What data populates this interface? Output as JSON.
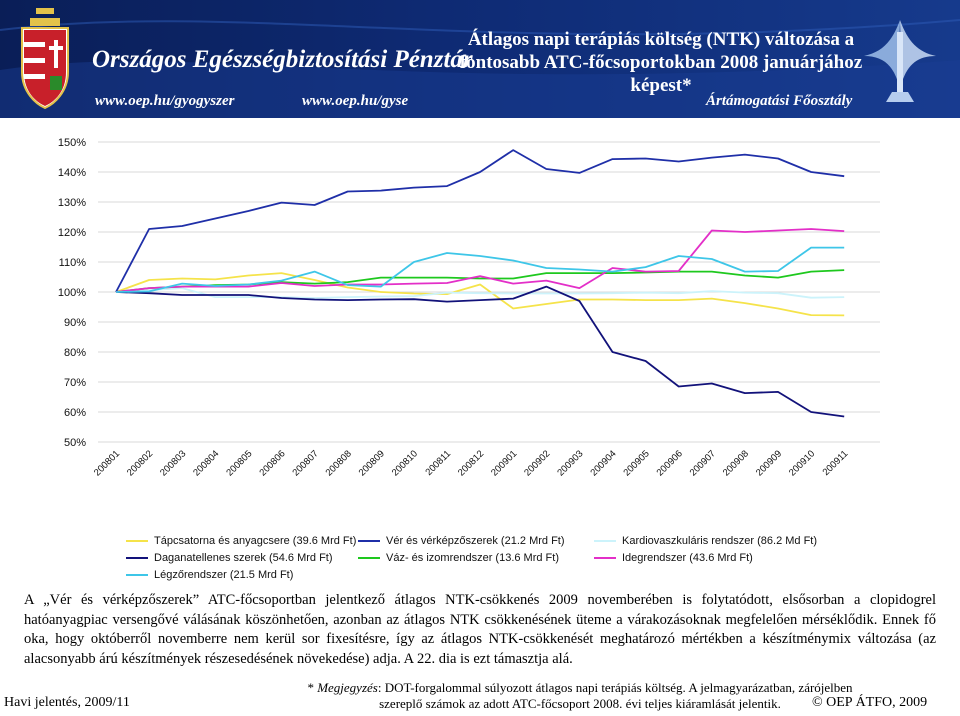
{
  "header": {
    "org_name": "Országos Egészségbiztosítási Pénztár",
    "url_left": "www.oep.hu/gyogyszer",
    "url_right": "www.oep.hu/gyse",
    "title": "Átlagos napi terápiás költség (NTK) változása a fontosabb ATC-főcsoportokban 2008 januárjához képest*",
    "department": "Ártámogatási Főosztály"
  },
  "chart_data": {
    "type": "line",
    "ylim": [
      50,
      150
    ],
    "yticks": [
      "50%",
      "60%",
      "70%",
      "80%",
      "90%",
      "100%",
      "110%",
      "120%",
      "130%",
      "140%",
      "150%"
    ],
    "y_tick_values": [
      50,
      60,
      70,
      80,
      90,
      100,
      110,
      120,
      130,
      140,
      150
    ],
    "grid": "horizontal",
    "legend_position": "bottom",
    "categories": [
      "200801",
      "200802",
      "200803",
      "200804",
      "200805",
      "200806",
      "200807",
      "200808",
      "200809",
      "200810",
      "200811",
      "200812",
      "200901",
      "200902",
      "200903",
      "200904",
      "200905",
      "200906",
      "200907",
      "200908",
      "200909",
      "200910",
      "200911"
    ],
    "series": [
      {
        "name": "Tápcsatorna és anyagcsere (39.6 Mrd Ft)",
        "color": "#f5e34a",
        "values": [
          100,
          104,
          104.5,
          104.2,
          105.5,
          106.3,
          104,
          101.5,
          100,
          99.5,
          99.3,
          102.5,
          94.5,
          96,
          97.5,
          97.5,
          97.3,
          97.3,
          97.8,
          96.3,
          94.5,
          92.3,
          92.2
        ]
      },
      {
        "name": "Vér és vérképzőszerek (21.2 Mrd Ft)",
        "color": "#1f2fa8",
        "values": [
          100,
          121,
          122,
          124.5,
          127,
          129.8,
          129,
          133.5,
          133.8,
          134.8,
          135.3,
          140,
          147.3,
          141,
          139.7,
          144.3,
          144.5,
          143.5,
          144.8,
          145.8,
          144.5,
          140,
          138.6
        ]
      },
      {
        "name": "Kardiovaszkuláris rendszer (86.2 Md Ft)",
        "color": "#ccf3fb",
        "values": [
          100,
          100.6,
          101.3,
          98.3,
          98.3,
          98.3,
          98,
          98.3,
          98.5,
          98.6,
          99.8,
          99.6,
          99.5,
          99.5,
          99.5,
          99.6,
          99.8,
          99.6,
          100.3,
          99.8,
          99.6,
          98.1,
          98.3
        ]
      },
      {
        "name": "Daganatellenes szerek (54.6 Mrd Ft)",
        "color": "#12127a",
        "values": [
          100,
          99.6,
          99,
          99,
          99,
          98,
          97.5,
          97.3,
          97.5,
          97.6,
          96.8,
          97.3,
          97.8,
          101.8,
          97,
          80,
          77,
          68.5,
          69.5,
          66.3,
          66.7,
          60,
          58.5
        ]
      },
      {
        "name": "Váz- és izomrendszer (13.6 Mrd Ft)",
        "color": "#1ec81e",
        "values": [
          100,
          101.3,
          101.8,
          102.3,
          102.5,
          103.3,
          102.8,
          103.3,
          104.8,
          104.8,
          104.8,
          104.5,
          104.5,
          106.3,
          106.3,
          106.3,
          106.5,
          106.8,
          106.8,
          105.5,
          104.8,
          106.8,
          107.3
        ]
      },
      {
        "name": "Idegrendszer (43.6 Mrd Ft)",
        "color": "#e32fc8",
        "values": [
          100,
          101.3,
          101.8,
          101.8,
          101.8,
          103,
          102,
          102.5,
          102.5,
          102.8,
          103,
          105.3,
          102.8,
          103.8,
          101.3,
          108,
          106.8,
          107,
          120.5,
          120,
          120.5,
          121,
          120.3
        ]
      },
      {
        "name": "Légzőrendszer (21.5 Mrd Ft)",
        "color": "#3ec6e8",
        "values": [
          100,
          100.2,
          102.8,
          102,
          102.5,
          103.8,
          106.8,
          102.3,
          101.8,
          110,
          113,
          112,
          110.5,
          108,
          107.5,
          106.8,
          108.3,
          112,
          111,
          106.8,
          107,
          114.8,
          114.8
        ]
      }
    ]
  },
  "paragraph": "A „Vér és vérképzőszerek” ATC-főcsoportban jelentkező átlagos NTK-csökkenés 2009 novemberében is folytatódott, elsősorban a clopidogrel hatóanyagpiac versengővé válásának köszönhetően, azonban az átlagos NTK csökkenésének üteme a várakozásoknak megfelelően mérséklődik. Ennek fő oka, hogy októberről novemberre nem kerül sor fixesítésre, így az átlagos NTK-csökkenését meghatározó mértékben a készítménymix változása (az alacsonyabb árú készítmények részesedésének növekedése) adja. A 22. dia is ezt támasztja alá.",
  "footnote": {
    "star": "* ",
    "label": "Megjegyzés",
    "text": ": DOT-forgalommal súlyozott átlagos napi terápiás költség. A jelmagyarázatban, zárójelben szereplő számok az adott ATC-főcsoport 2008. évi teljes kiáramlását jelentik."
  },
  "footer": {
    "left": "Havi jelentés, 2009/11",
    "right": "© OEP ÁTFO, 2009"
  },
  "icons": {
    "crest": "coat-of-arms-icon",
    "logo": "oep-logo-icon"
  },
  "colors": {
    "banner": "#0e2a73"
  }
}
